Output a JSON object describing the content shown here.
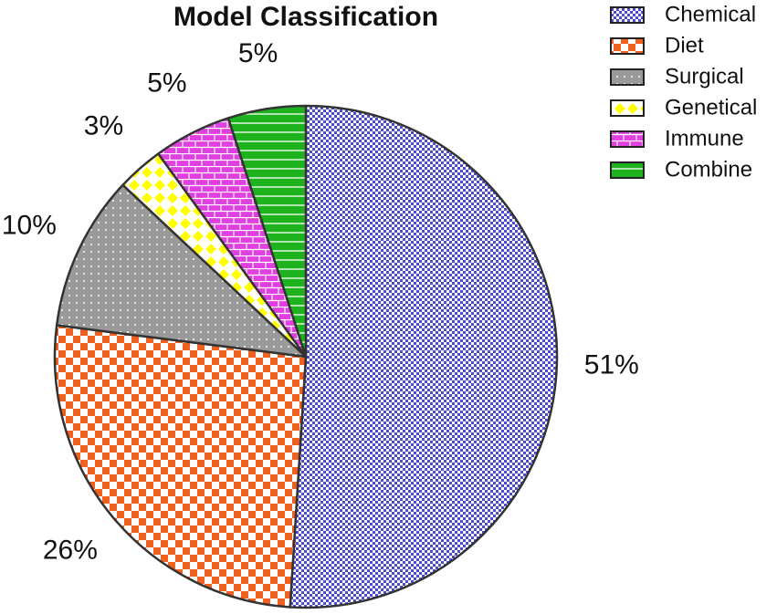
{
  "chart_data": {
    "type": "pie",
    "title": "Model Classification",
    "categories": [
      "Chemical",
      "Diet",
      "Surgical",
      "Genetical",
      "Immune",
      "Combine"
    ],
    "values": [
      51,
      26,
      10,
      3,
      5,
      5
    ],
    "value_labels": [
      "51%",
      "26%",
      "10%",
      "3%",
      "5%",
      "5%"
    ],
    "colors": [
      "#4b4bd2",
      "#f0601e",
      "#9a9a9a",
      "#ffff00",
      "#e040e0",
      "#1fb21f"
    ],
    "legend": "upper right"
  }
}
